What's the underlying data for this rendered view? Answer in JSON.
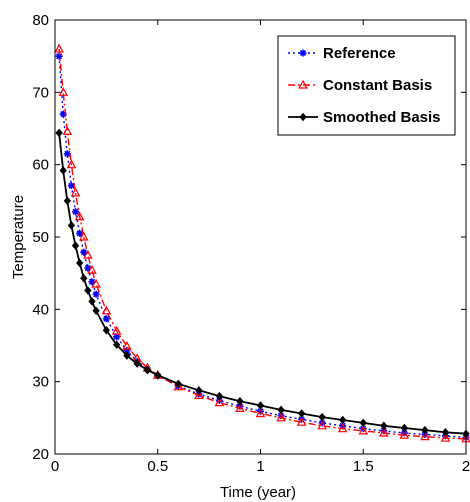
{
  "chart_data": {
    "type": "line",
    "xlabel": "Time (year)",
    "ylabel": "Temperature",
    "xlim": [
      0,
      2
    ],
    "ylim": [
      20,
      80
    ],
    "xticks": [
      "0",
      "0.5",
      "1",
      "1.5",
      "2"
    ],
    "yticks": [
      "20",
      "30",
      "40",
      "50",
      "60",
      "70",
      "80"
    ],
    "grid": false,
    "legend_placement": "top-right",
    "series": [
      {
        "name": "Reference",
        "color": "#0000ff",
        "marker": "asterisk",
        "line_style": "dotted",
        "x": [
          0.02,
          0.04,
          0.06,
          0.08,
          0.1,
          0.12,
          0.14,
          0.16,
          0.18,
          0.2,
          0.25,
          0.3,
          0.35,
          0.4,
          0.45,
          0.5,
          0.6,
          0.7,
          0.8,
          0.9,
          1.0,
          1.1,
          1.2,
          1.3,
          1.4,
          1.5,
          1.6,
          1.7,
          1.8,
          1.9,
          2.0
        ],
        "values": [
          75.0,
          67.0,
          61.5,
          57.1,
          53.5,
          50.5,
          47.9,
          45.7,
          43.8,
          42.1,
          38.7,
          36.2,
          34.3,
          32.8,
          31.7,
          30.8,
          29.4,
          28.3,
          27.4,
          26.6,
          25.9,
          25.3,
          24.8,
          24.3,
          23.9,
          23.5,
          23.2,
          22.9,
          22.7,
          22.5,
          22.3
        ]
      },
      {
        "name": "Constant Basis",
        "color": "#ff0000",
        "marker": "triangle",
        "line_style": "dash-dot",
        "x": [
          0.02,
          0.04,
          0.06,
          0.08,
          0.1,
          0.12,
          0.14,
          0.16,
          0.18,
          0.2,
          0.25,
          0.3,
          0.35,
          0.4,
          0.45,
          0.5,
          0.6,
          0.7,
          0.8,
          0.9,
          1.0,
          1.1,
          1.2,
          1.3,
          1.4,
          1.5,
          1.6,
          1.7,
          1.8,
          1.9,
          2.0
        ],
        "values": [
          76.0,
          70.0,
          64.6,
          60.0,
          56.1,
          52.8,
          50.0,
          47.5,
          45.4,
          43.5,
          39.8,
          37.0,
          34.9,
          33.2,
          31.9,
          30.9,
          29.3,
          28.1,
          27.1,
          26.3,
          25.6,
          25.0,
          24.4,
          23.9,
          23.5,
          23.2,
          22.9,
          22.6,
          22.4,
          22.2,
          22.1
        ]
      },
      {
        "name": "Smoothed Basis",
        "color": "#000000",
        "marker": "diamond",
        "line_style": "solid",
        "x": [
          0.02,
          0.04,
          0.06,
          0.08,
          0.1,
          0.12,
          0.14,
          0.16,
          0.18,
          0.2,
          0.25,
          0.3,
          0.35,
          0.4,
          0.45,
          0.5,
          0.6,
          0.7,
          0.8,
          0.9,
          1.0,
          1.1,
          1.2,
          1.3,
          1.4,
          1.5,
          1.6,
          1.7,
          1.8,
          1.9,
          2.0
        ],
        "values": [
          64.4,
          59.2,
          55.0,
          51.6,
          48.8,
          46.4,
          44.3,
          42.6,
          41.1,
          39.8,
          37.1,
          35.1,
          33.6,
          32.5,
          31.6,
          30.9,
          29.7,
          28.8,
          28.0,
          27.3,
          26.7,
          26.1,
          25.6,
          25.1,
          24.7,
          24.3,
          23.9,
          23.6,
          23.3,
          23.0,
          22.8
        ]
      }
    ]
  }
}
